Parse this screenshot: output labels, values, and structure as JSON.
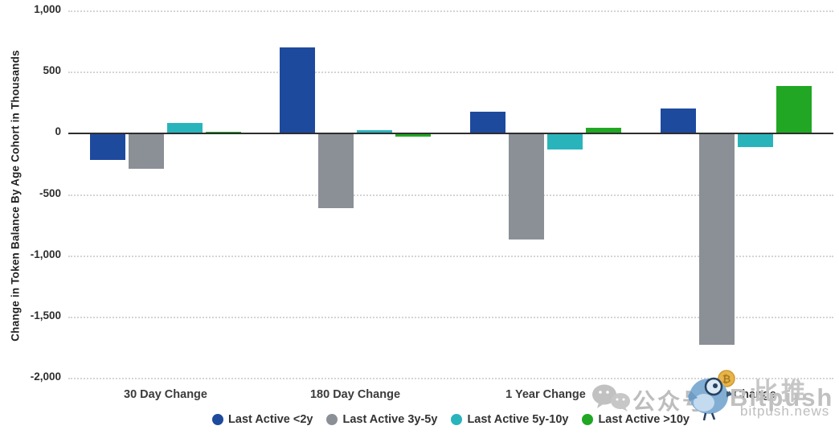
{
  "chart_data": {
    "type": "bar",
    "title": "",
    "ylabel": "Change in Token Balance By Age Cohort in Thousands",
    "xlabel": "",
    "categories": [
      "30 Day Change",
      "180 Day Change",
      "1 Year Change",
      "2 Year Change"
    ],
    "series": [
      {
        "name": "Last Active <2y",
        "color": "#1e4a9e",
        "values": [
          -210,
          700,
          175,
          200
        ]
      },
      {
        "name": "Last Active 3y-5y",
        "color": "#8b9096",
        "values": [
          -280,
          -600,
          -860,
          -1720
        ]
      },
      {
        "name": "Last Active 5y-10y",
        "color": "#29b4bc",
        "values": [
          80,
          20,
          -120,
          -100
        ]
      },
      {
        "name": "Last Active >10y",
        "color": "#21a723",
        "values": [
          5,
          -20,
          40,
          380
        ]
      }
    ],
    "ylim": [
      -2000,
      1000
    ],
    "yticks": [
      1000,
      500,
      0,
      -500,
      -1000,
      -1500,
      -2000
    ],
    "ytick_labels": [
      "1,000",
      "500",
      "0",
      "-500",
      "-1,000",
      "-1,500",
      "-2,000"
    ],
    "grid": "horizontal dotted",
    "legend_position": "bottom"
  },
  "watermark": {
    "wechat_label": "公众号",
    "brand_cn": "比推",
    "brand_en": "Bitpush",
    "site": "bitpush.news",
    "coin_symbol": "₿"
  }
}
